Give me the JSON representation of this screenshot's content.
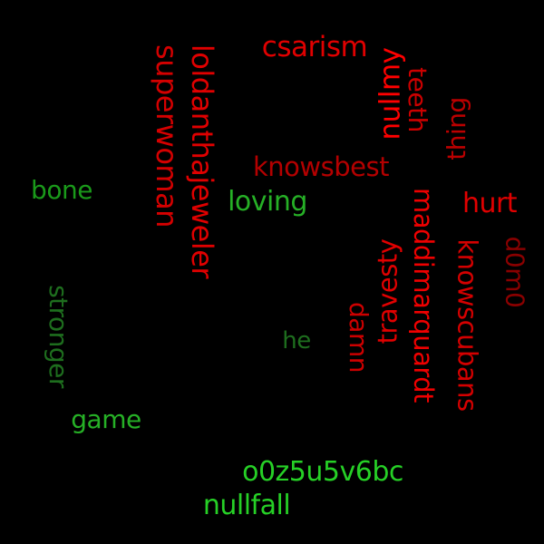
{
  "words": [
    {
      "text": "csarism",
      "color": "#e00000",
      "rotate": 0
    },
    {
      "text": "loldanthajeweler",
      "color": "#e00000",
      "rotate": 90
    },
    {
      "text": "superwoman",
      "color": "#d40000",
      "rotate": 90
    },
    {
      "text": "nullmy",
      "color": "#ff0000",
      "rotate": -90
    },
    {
      "text": "teeth",
      "color": "#cc0000",
      "rotate": 90
    },
    {
      "text": "thing",
      "color": "#bb0000",
      "rotate": -90
    },
    {
      "text": "knowsbest",
      "color": "#b30000",
      "rotate": 0
    },
    {
      "text": "maddimarquardt",
      "color": "#ee0000",
      "rotate": 90
    },
    {
      "text": "bone",
      "color": "#1a9a1a",
      "rotate": 0
    },
    {
      "text": "loving",
      "color": "#26b026",
      "rotate": 0
    },
    {
      "text": "hurt",
      "color": "#e00000",
      "rotate": 0
    },
    {
      "text": "knowscubans",
      "color": "#d40000",
      "rotate": 90
    },
    {
      "text": "d0m0",
      "color": "#8a0000",
      "rotate": 90
    },
    {
      "text": "stronger",
      "color": "#1e6e1e",
      "rotate": 90
    },
    {
      "text": "travesty",
      "color": "#e00000",
      "rotate": -90
    },
    {
      "text": "damn",
      "color": "#cc0000",
      "rotate": 90
    },
    {
      "text": "he",
      "color": "#1e6e1e",
      "rotate": 0
    },
    {
      "text": "game",
      "color": "#26b026",
      "rotate": 0
    },
    {
      "text": "o0z5u5v6bc",
      "color": "#26d026",
      "rotate": 0
    },
    {
      "text": "nullfall",
      "color": "#26d026",
      "rotate": 0
    }
  ]
}
